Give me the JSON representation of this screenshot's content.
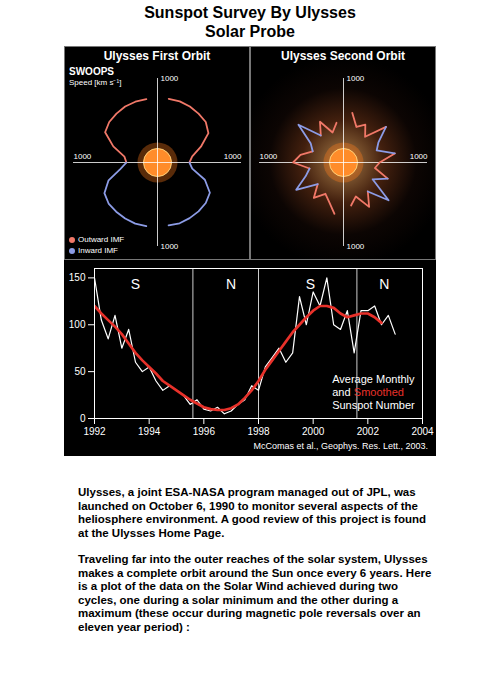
{
  "header": {
    "title": [
      "Sunspot Survey By Ulysses",
      "Solar Probe"
    ]
  },
  "chart_data": [
    {
      "type": "polar",
      "title": "Ulysses First Orbit",
      "subtitle": "SWOOPS",
      "ylabel": "Speed [km s⁻¹]",
      "x": [
        -80,
        -70,
        -60,
        -50,
        -40,
        -30,
        -20,
        -10,
        0,
        10,
        20,
        30,
        40,
        50,
        60,
        70,
        80,
        90,
        100,
        110,
        120,
        130,
        140,
        150,
        160,
        170,
        180,
        190,
        200,
        210,
        220,
        230,
        240,
        250,
        260
      ],
      "series": [
        {
          "name": "Outward IMF",
          "color": "#f07868",
          "values": [
            null,
            null,
            null,
            null,
            null,
            null,
            null,
            null,
            380,
            420,
            550,
            700,
            750,
            760,
            770,
            775,
            770,
            null,
            765,
            770,
            770,
            760,
            750,
            720,
            560,
            400,
            370,
            null,
            null,
            null,
            null,
            null,
            null,
            null,
            null
          ]
        },
        {
          "name": "Inward IMF",
          "color": "#8c9ce6",
          "values": [
            760,
            770,
            765,
            760,
            750,
            720,
            600,
            420,
            380,
            null,
            null,
            null,
            null,
            null,
            null,
            null,
            null,
            null,
            null,
            null,
            null,
            null,
            null,
            null,
            null,
            null,
            370,
            450,
            620,
            730,
            760,
            765,
            770,
            775,
            770
          ]
        }
      ],
      "ylim": [
        0,
        1000
      ],
      "yticks": [
        1000
      ],
      "legend": "bottom-left"
    },
    {
      "type": "polar",
      "title": "Ulysses Second Orbit",
      "x": [
        -80,
        -70,
        -60,
        -50,
        -40,
        -30,
        -20,
        -10,
        0,
        10,
        20,
        30,
        40,
        50,
        60,
        70,
        80,
        90,
        100,
        110,
        120,
        130,
        140,
        150,
        160,
        170,
        180,
        190,
        200,
        210,
        220,
        230,
        240,
        250,
        260
      ],
      "series": [
        {
          "color": "#f07868",
          "values": [
            520,
            430,
            610,
            450,
            null,
            null,
            560,
            380,
            430,
            620,
            null,
            null,
            660,
            400,
            520,
            450,
            600,
            null,
            480,
            380,
            560,
            420,
            null,
            null,
            390,
            520,
            600,
            410,
            null,
            null,
            400,
            550,
            430,
            500,
            620
          ]
        },
        {
          "color": "#8c9ce6",
          "values": [
            null,
            null,
            null,
            450,
            700,
            400,
            560,
            null,
            null,
            620,
            420,
            480,
            660,
            null,
            null,
            null,
            null,
            null,
            null,
            null,
            null,
            420,
            700,
            450,
            390,
            null,
            null,
            410,
            480,
            650,
            400,
            null,
            null,
            null,
            null
          ]
        }
      ],
      "ylim": [
        0,
        1000
      ],
      "yticks": [
        1000
      ]
    },
    {
      "type": "line",
      "x": [
        1992,
        1992.25,
        1992.5,
        1992.75,
        1993,
        1993.25,
        1993.5,
        1993.75,
        1994,
        1994.25,
        1994.5,
        1994.75,
        1995,
        1995.25,
        1995.5,
        1995.75,
        1996,
        1996.25,
        1996.5,
        1996.75,
        1997,
        1997.25,
        1997.5,
        1997.75,
        1998,
        1998.25,
        1998.5,
        1998.75,
        1999,
        1999.25,
        1999.5,
        1999.75,
        2000,
        2000.25,
        2000.5,
        2000.75,
        2001,
        2001.25,
        2001.5,
        2001.75,
        2002,
        2002.25,
        2002.5,
        2002.75,
        2003
      ],
      "series": [
        {
          "name": "Average Monthly",
          "color": "#ffffff",
          "values": [
            150,
            105,
            85,
            110,
            75,
            95,
            60,
            50,
            55,
            40,
            30,
            35,
            30,
            25,
            15,
            20,
            10,
            8,
            12,
            5,
            8,
            15,
            20,
            35,
            30,
            55,
            65,
            75,
            60,
            70,
            130,
            100,
            135,
            120,
            150,
            100,
            95,
            115,
            70,
            115,
            115,
            120,
            100,
            110,
            90
          ]
        },
        {
          "name": "Smoothed",
          "color": "#e8312a",
          "values": [
            120,
            112,
            105,
            98,
            90,
            80,
            70,
            62,
            55,
            48,
            40,
            35,
            30,
            25,
            20,
            16,
            12,
            10,
            9,
            9,
            11,
            15,
            22,
            30,
            40,
            52,
            62,
            72,
            82,
            92,
            100,
            108,
            115,
            120,
            120,
            118,
            112,
            108,
            110,
            112,
            112,
            108,
            102,
            null,
            null
          ]
        }
      ],
      "xlim": [
        1992,
        2004
      ],
      "xticks": [
        1992,
        1994,
        1996,
        1998,
        2000,
        2002,
        2004
      ],
      "ylim": [
        0,
        160
      ],
      "yticks": [
        0,
        50,
        100,
        150
      ],
      "legend": "bottom-right",
      "legend_text": [
        [
          "Average Monthly"
        ],
        [
          "and",
          "Smoothed"
        ],
        [
          "Sunspot Number"
        ]
      ],
      "annotations": [
        {
          "text": "S",
          "x": 1993.5
        },
        {
          "text": "N",
          "x": 1997
        },
        {
          "text": "S",
          "x": 1999.9
        },
        {
          "text": "N",
          "x": 2002.6
        }
      ],
      "dividers": [
        1995.6,
        1998,
        2001.6
      ],
      "source": "McComas et al., Geophys. Res. Lett., 2003."
    }
  ],
  "caption": {
    "paragraphs": [
      "Ulysses, a joint ESA-NASA program managed out of JPL, was launched on October 6, 1990 to monitor several aspects of the heliosphere environment. A good review of this project is found at the Ulysses Home Page.",
      "Traveling far into the outer reaches of the solar system, Ulysses makes a complete orbit around the Sun once every 6 years. Here is a plot of the data on the Solar Wind achieved during two cycles, one during a solar minimum and the other during a maximum (these occur during magnetic pole reversals over an eleven year period) :"
    ]
  }
}
